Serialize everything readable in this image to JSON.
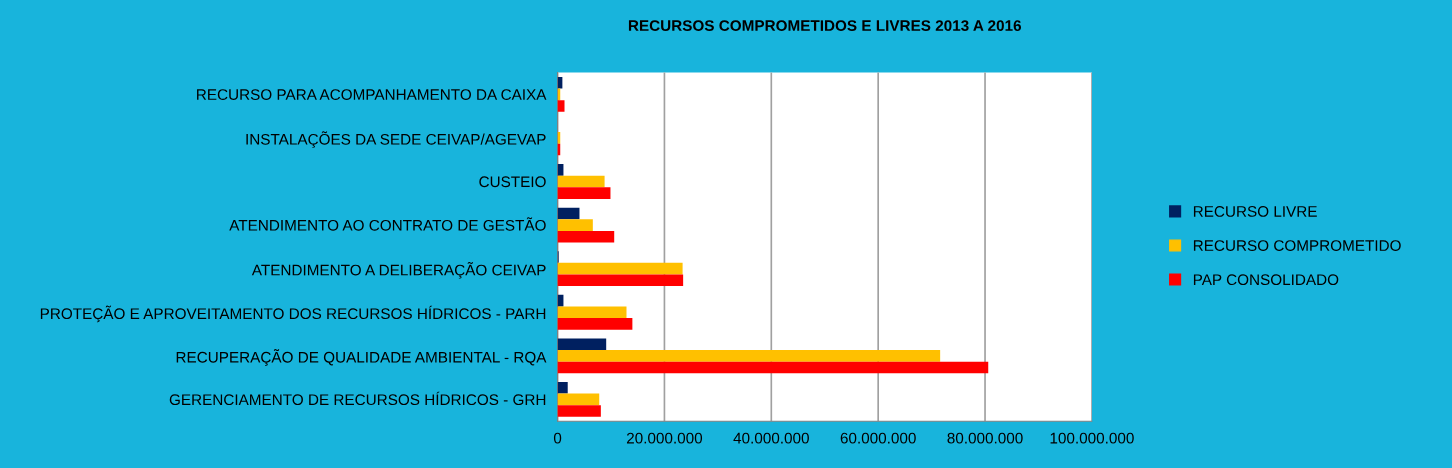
{
  "chart_data": {
    "type": "bar",
    "orientation": "horizontal",
    "title": "RECURSOS COMPROMETIDOS E LIVRES 2013 A 2016",
    "categories": [
      "RECURSO PARA ACOMPANHAMENTO DA CAIXA",
      "INSTALAÇÕES DA SEDE CEIVAP/AGEVAP",
      "CUSTEIO",
      "ATENDIMENTO AO CONTRATO DE GESTÃO",
      "ATENDIMENTO A DELIBERAÇÃO CEIVAP",
      "PROTEÇÃO E APROVEITAMENTO DOS RECURSOS HÍDRICOS - PARH",
      "RECUPERAÇÃO DE QUALIDADE AMBIENTAL - RQA",
      "GERENCIAMENTO DE RECURSOS HÍDRICOS - GRH"
    ],
    "series": [
      {
        "name": "RECURSO LIVRE",
        "color": "#002060",
        "values": [
          900000,
          0,
          1100000,
          4100000,
          200000,
          1100000,
          9100000,
          1900000
        ]
      },
      {
        "name": "RECURSO COMPROMETIDO",
        "color": "#ffc000",
        "values": [
          500000,
          500000,
          8800000,
          6600000,
          23400000,
          12900000,
          71600000,
          7800000
        ]
      },
      {
        "name": "PAP CONSOLIDADO",
        "color": "#ff0000",
        "values": [
          1300000,
          500000,
          9900000,
          10600000,
          23500000,
          14000000,
          80600000,
          8100000
        ]
      }
    ],
    "xlim": [
      0,
      100000000
    ],
    "xticks": [
      0,
      {
        "value": 20000000,
        "label": "20.000.000"
      },
      {
        "value": 40000000,
        "label": "40.000.000"
      },
      {
        "value": 60000000,
        "label": "60.000.000"
      },
      {
        "value": 80000000,
        "label": "80.000.000"
      },
      {
        "value": 100000000,
        "label": "100.000.000"
      }
    ],
    "grid": "x",
    "legend": "right"
  }
}
